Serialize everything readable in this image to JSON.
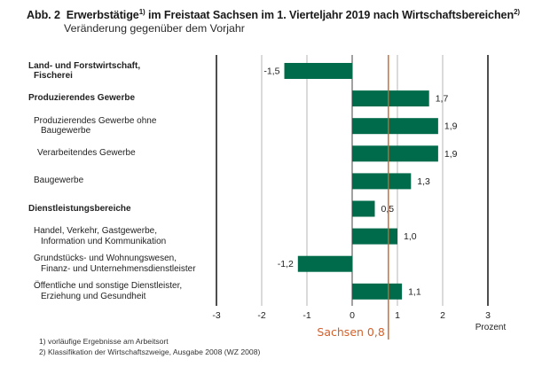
{
  "chart_data": {
    "type": "bar",
    "orientation": "horizontal",
    "title_prefix": "Abb. 2",
    "title_part1": "Erwerbstätige",
    "title_sup1": "1)",
    "title_part2": " im Freistaat Sachsen im 1. Vierteljahr 2019 nach Wirtschaftsbereichen",
    "title_sup2": "2)",
    "subtitle": "Veränderung gegenüber dem Vorjahr",
    "xlabel": "Prozent",
    "xlim": [
      -3,
      3
    ],
    "xticks": [
      -3,
      -2,
      -1,
      0,
      1,
      2,
      3
    ],
    "xtick_labels": [
      "-3",
      "-2",
      "-1",
      "0",
      "1",
      "2",
      "3"
    ],
    "grid": true,
    "bar_color": "#006b4a",
    "reference_line": {
      "label": "Sachsen 0,8",
      "value": 0.8,
      "color": "#d4602a"
    },
    "categories": [
      {
        "line1": "Land- und Forstwirtschaft,",
        "line2": "Fischerei",
        "bold": true,
        "indent": 0
      },
      {
        "line1": "Produzierendes Gewerbe",
        "line2": "",
        "bold": true,
        "indent": 0
      },
      {
        "line1": "Produzierendes Gewerbe ohne",
        "line2": "Baugewerbe",
        "bold": false,
        "indent": 1
      },
      {
        "line1": "Verarbeitendes Gewerbe",
        "line2": "",
        "bold": false,
        "indent": 2
      },
      {
        "line1": "Baugewerbe",
        "line2": "",
        "bold": false,
        "indent": 1
      },
      {
        "line1": "Dienstleistungsbereiche",
        "line2": "",
        "bold": true,
        "indent": 0
      },
      {
        "line1": "Handel, Verkehr, Gastgewerbe,",
        "line2": "Information und Kommunikation",
        "bold": false,
        "indent": 1
      },
      {
        "line1": "Grundstücks- und Wohnungswesen,",
        "line2": "Finanz- und Unternehmensdienstleister",
        "bold": false,
        "indent": 1
      },
      {
        "line1": "Öffentliche und sonstige Dienstleister,",
        "line2": "Erziehung und Gesundheit",
        "bold": false,
        "indent": 1
      }
    ],
    "values": [
      -1.5,
      1.7,
      1.9,
      1.9,
      1.3,
      0.5,
      1.0,
      -1.2,
      1.1
    ],
    "value_labels": [
      "-1,5",
      "1,7",
      "1,9",
      "1,9",
      "1,3",
      "0,5",
      "1,0",
      "-1,2",
      "1,1"
    ]
  },
  "footnotes": [
    "1) vorläufige Ergebnisse am Arbeitsort",
    "2) Klassifikation der Wirtschaftszweige, Ausgabe 2008 (WZ 2008)"
  ]
}
